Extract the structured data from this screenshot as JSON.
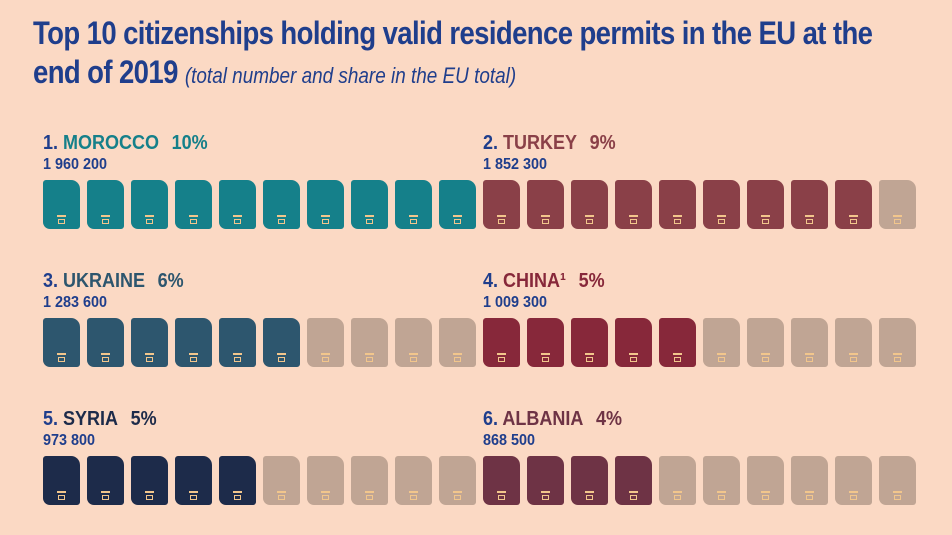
{
  "chart_data": {
    "type": "pictogram",
    "title": "Top 10 citizenships holding valid residence permits in the EU at the end of 2019",
    "subtitle": "(total number and share in the EU total)",
    "unit_percent_per_icon": 1,
    "icons_total": 10,
    "empty_color": "#c0a594",
    "items": [
      {
        "rank": "1.",
        "country": "MOROCCO",
        "percent_label": "10%",
        "percent": 10,
        "count": "1 960 200",
        "color": "#15808a"
      },
      {
        "rank": "2.",
        "country": "TURKEY",
        "percent_label": "9%",
        "percent": 9,
        "count": "1 852 300",
        "color": "#8a4048"
      },
      {
        "rank": "3.",
        "country": "UKRAINE",
        "percent_label": "6%",
        "percent": 6,
        "count": "1 283 600",
        "color": "#2d566e"
      },
      {
        "rank": "4.",
        "country": "CHINA¹",
        "percent_label": "5%",
        "percent": 5,
        "count": "1 009 300",
        "color": "#87283a"
      },
      {
        "rank": "5.",
        "country": "SYRIA",
        "percent_label": "5%",
        "percent": 5,
        "count": "973 800",
        "color": "#1d2b4a"
      },
      {
        "rank": "6.",
        "country": "ALBANIA",
        "percent_label": "4%",
        "percent": 4,
        "count": "868 500",
        "color": "#6e3345"
      }
    ]
  }
}
